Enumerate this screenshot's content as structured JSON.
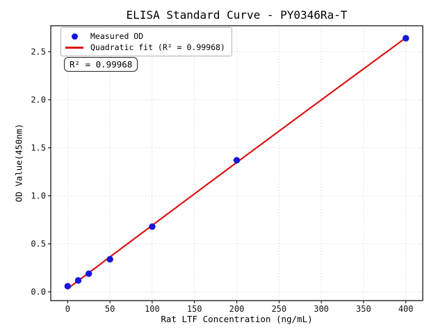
{
  "chart_data": {
    "type": "scatter",
    "title": "ELISA Standard Curve - PY0346Ra-T",
    "xlabel": "Rat LTF Concentration (ng/mL)",
    "ylabel": "OD Value(450nm)",
    "xlim": [
      -20,
      420
    ],
    "ylim": [
      -0.09,
      2.77
    ],
    "x_ticks": [
      0,
      50,
      100,
      150,
      200,
      250,
      300,
      350,
      400
    ],
    "y_ticks": [
      0.0,
      0.5,
      1.0,
      1.5,
      2.0,
      2.5
    ],
    "grid": "dotted",
    "grid_color": "#cccccc",
    "axis_color": "#000000",
    "legend_position": "upper-left",
    "series": [
      {
        "name": "Measured OD",
        "type": "scatter",
        "marker": "circle",
        "color": "#1616dd",
        "x": [
          0,
          12.5,
          25,
          50,
          100,
          200,
          400
        ],
        "y": [
          0.06,
          0.12,
          0.19,
          0.34,
          0.68,
          1.37,
          2.64
        ]
      },
      {
        "name": "Quadratic fit (R² = 0.99968)",
        "type": "line",
        "color": "#dd1111",
        "fit": "quadratic",
        "fit_of_series": 0,
        "x_range": [
          0,
          400
        ]
      }
    ],
    "annotation": "R² = 0.99968",
    "r_squared": 0.99968
  }
}
